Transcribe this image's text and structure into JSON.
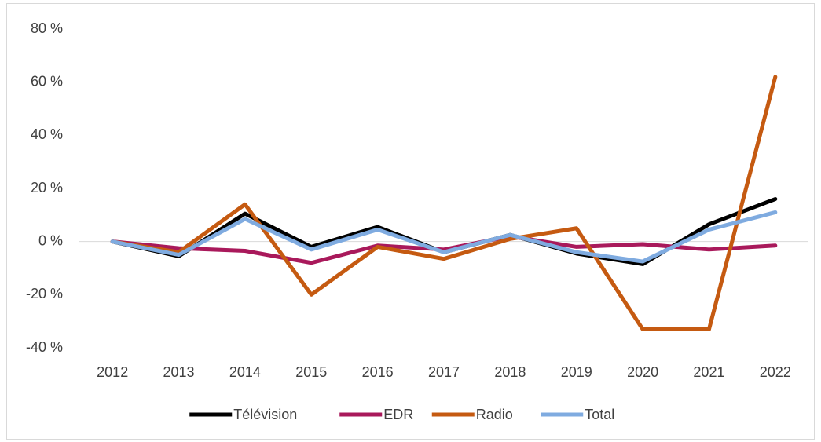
{
  "chart_data": {
    "type": "line",
    "categories": [
      "2012",
      "2013",
      "2014",
      "2015",
      "2016",
      "2017",
      "2018",
      "2019",
      "2020",
      "2021",
      "2022"
    ],
    "series": [
      {
        "name": "Télévision",
        "color": "#000000",
        "values": [
          0,
          -5.5,
          10.5,
          -2,
          5.5,
          -4,
          2.5,
          -4.5,
          -8.5,
          6.5,
          16
        ]
      },
      {
        "name": "EDR",
        "color": "#a9195b",
        "values": [
          0,
          -2.5,
          -3.5,
          -8,
          -1.5,
          -3,
          2,
          -2,
          -1,
          -3,
          -1.5
        ]
      },
      {
        "name": "Radio",
        "color": "#c55a11",
        "values": [
          0,
          -4,
          14,
          -20,
          -2,
          -6.5,
          1,
          5,
          -33,
          -33,
          62
        ]
      },
      {
        "name": "Total",
        "color": "#7fabe0",
        "values": [
          0,
          -5,
          8.5,
          -3,
          4.5,
          -4,
          2.5,
          -4,
          -7.5,
          4.5,
          11
        ]
      }
    ],
    "ylim": [
      -40,
      80
    ],
    "yticks": [
      {
        "value": -40,
        "label": "-40 %"
      },
      {
        "value": -20,
        "label": "-20 %"
      },
      {
        "value": 0,
        "label": "0 %"
      },
      {
        "value": 20,
        "label": "20 %"
      },
      {
        "value": 40,
        "label": "40 %"
      },
      {
        "value": 60,
        "label": "60 %"
      },
      {
        "value": 80,
        "label": "80 %"
      }
    ],
    "grid": false,
    "legend": "bottom"
  }
}
